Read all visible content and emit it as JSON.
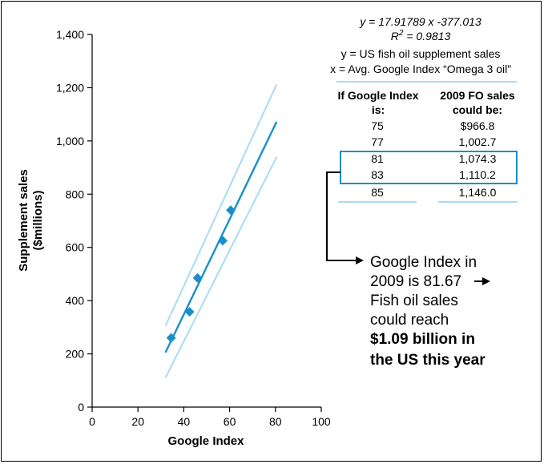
{
  "chart_data": {
    "type": "scatter",
    "xlabel": "Google Index",
    "ylabel_lines": [
      "Supplement sales",
      "($millions)"
    ],
    "xlim": [
      0,
      100
    ],
    "ylim": [
      0,
      1400
    ],
    "x_ticks": [
      0,
      20,
      40,
      60,
      80,
      100
    ],
    "y_ticks": [
      0,
      200,
      400,
      600,
      800,
      1000,
      1200,
      1400
    ],
    "x_tick_labels": [
      "0",
      "20",
      "40",
      "60",
      "80",
      "100"
    ],
    "y_tick_labels": [
      "0",
      "200",
      "400",
      "600",
      "800",
      "1,000",
      "1,200",
      "1,400"
    ],
    "grid": false,
    "points": [
      {
        "x": 34.5,
        "y": 260
      },
      {
        "x": 42.5,
        "y": 358
      },
      {
        "x": 46.0,
        "y": 485
      },
      {
        "x": 57.0,
        "y": 625
      },
      {
        "x": 60.5,
        "y": 740
      }
    ],
    "fit_line": {
      "x_start": 32,
      "x_end": 80.5,
      "y_start": 205,
      "y_end": 1072
    },
    "upper_band": {
      "x_start": 32,
      "x_end": 80.5,
      "y_start": 305,
      "y_end": 1212
    },
    "lower_band": {
      "x_start": 32,
      "x_end": 80.5,
      "y_start": 110,
      "y_end": 940
    },
    "colors": {
      "line": "#1a8fc9",
      "band": "#a8dcf2",
      "marker": "#1a8fc9",
      "highlight": "#1a8fc9"
    }
  },
  "equation": {
    "line1": "y = 17.91789 x -377.013",
    "line2_prefix": "R",
    "line2_sup": "2",
    "line2_suffix": " = 0.9813",
    "line3": "y = US fish oil supplement sales",
    "line4": "x = Avg. Google Index “Omega 3 oil”"
  },
  "table": {
    "col1_header": [
      "If Google Index",
      "is:"
    ],
    "col2_header": [
      "2009 FO sales",
      "could be:"
    ],
    "rows": [
      {
        "index": "75",
        "sales": "$966.8"
      },
      {
        "index": "77",
        "sales": "1,002.7"
      },
      {
        "index": "81",
        "sales": "1,074.3"
      },
      {
        "index": "83",
        "sales": "1,110.2"
      },
      {
        "index": "85",
        "sales": "1,146.0"
      }
    ]
  },
  "callout": {
    "line1": "Google Index in",
    "line2": "2009 is 81.67",
    "line3": "Fish oil sales",
    "line4": "could reach",
    "line5": "$1.09 billion in",
    "line6": "the US this year"
  }
}
